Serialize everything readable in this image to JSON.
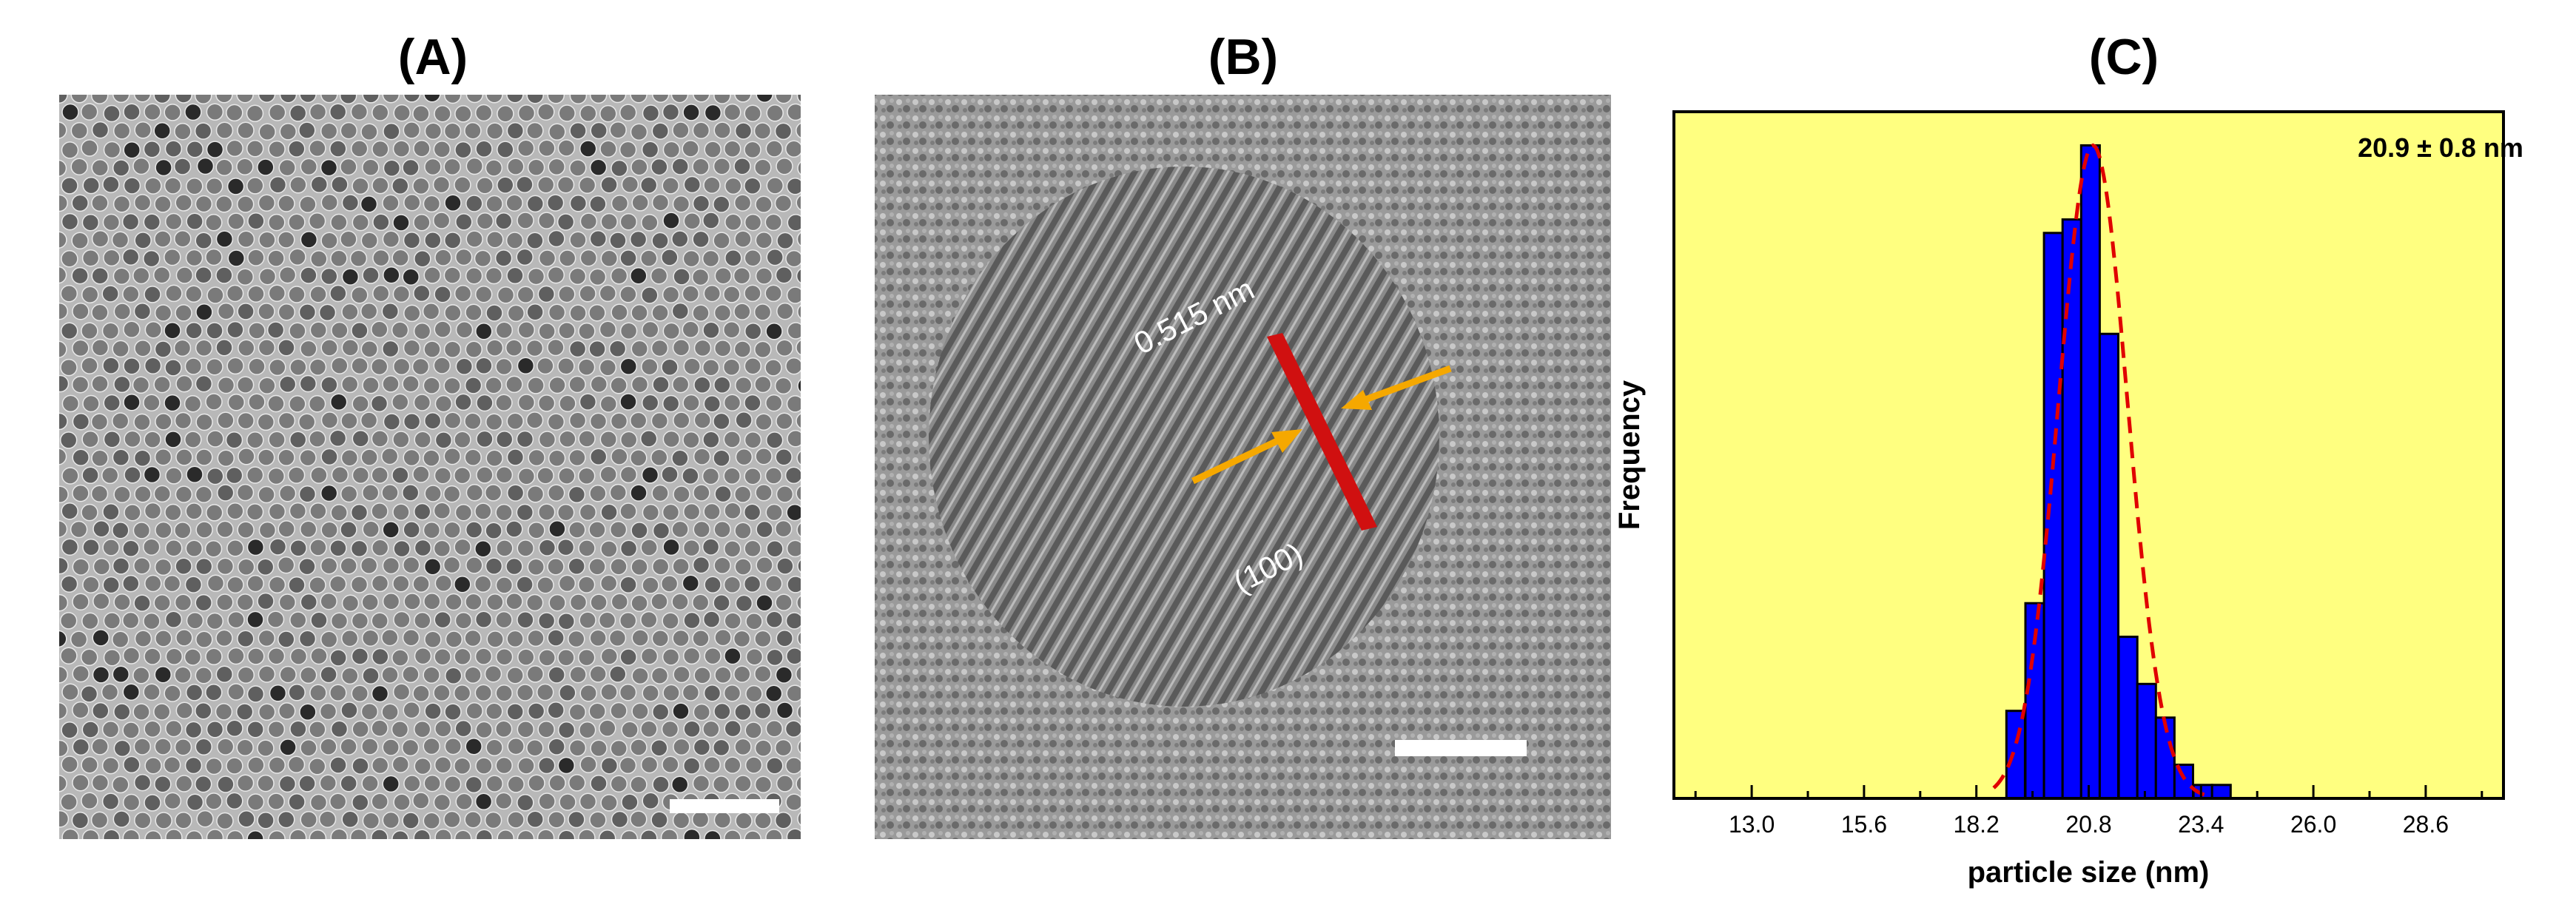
{
  "panels": {
    "a": {
      "label": "(A)"
    },
    "b": {
      "label": "(B)",
      "lattice_spacing": "0.515 nm",
      "plane": "(100)"
    },
    "c": {
      "label": "(C)"
    }
  },
  "colors": {
    "plot_background": "#ffff80",
    "bar_fill": "#0000ff",
    "fit_line": "#e00000",
    "arrow": "#f5a800",
    "lattice_marker": "#d01010"
  },
  "chart_data": {
    "type": "bar",
    "annotation": "20.9 ± 0.8 nm",
    "xlabel": "particle size (nm)",
    "ylabel": "Frequency",
    "xlim": [
      11.2,
      30.4
    ],
    "ylim": [
      0,
      102
    ],
    "xticks": [
      "13.0",
      "15.6",
      "18.2",
      "20.8",
      "23.4",
      "26.0",
      "28.6"
    ],
    "bin_width": 0.43,
    "categories": [
      19.11,
      19.55,
      19.98,
      20.41,
      20.84,
      21.27,
      21.71,
      22.14,
      22.57,
      23.0,
      23.44,
      23.87
    ],
    "values": [
      13,
      29,
      84,
      86,
      97,
      69,
      24,
      17,
      12,
      5,
      2,
      2
    ],
    "fit": {
      "type": "gaussian",
      "name": "",
      "mean": 20.9,
      "sigma": 0.8,
      "peak": 97
    },
    "grid": false,
    "legend": "none"
  }
}
